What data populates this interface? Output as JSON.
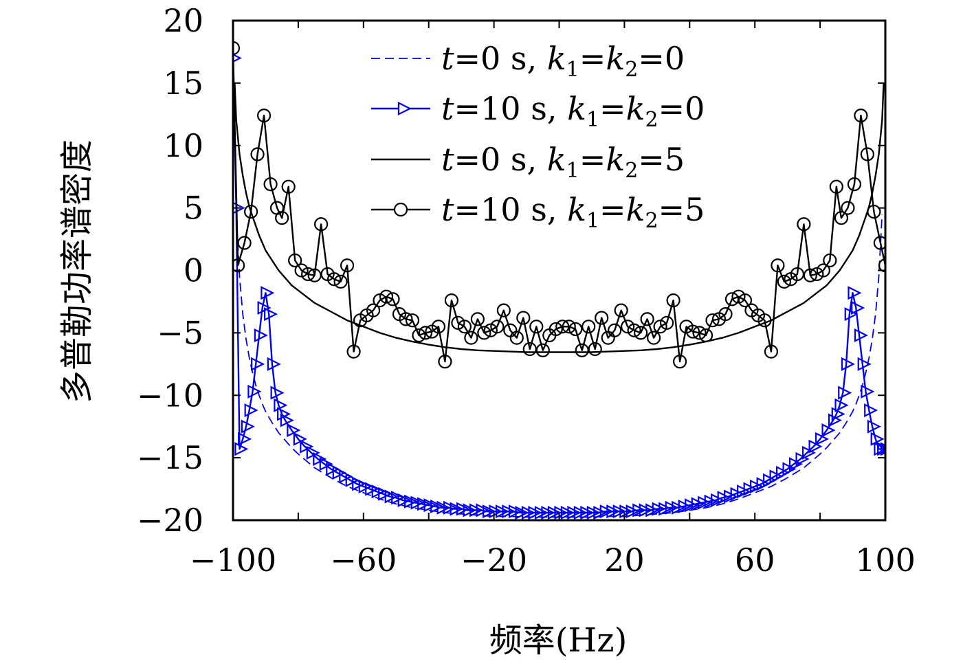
{
  "chart_data": {
    "type": "line",
    "xlabel": "频率(Hz)",
    "ylabel": "多普勒功率谱密度",
    "xlim": [
      -100,
      100
    ],
    "ylim": [
      -20,
      20
    ],
    "x_ticks": [
      "−100",
      "−60",
      "−20",
      "20",
      "60",
      "100"
    ],
    "x_tick_values": [
      -100,
      -60,
      -20,
      20,
      60,
      100
    ],
    "y_ticks": [
      "20",
      "15",
      "10",
      "5",
      "0",
      "−5",
      "−10",
      "−15",
      "−20"
    ],
    "y_tick_values": [
      20,
      15,
      10,
      5,
      0,
      -5,
      -10,
      -15,
      -20
    ],
    "grid": false,
    "legend_position": "top-right",
    "series": [
      {
        "name": "t=0 s, k1=k2=0",
        "legend_label": {
          "t": "t",
          "eq1": "=0 s, ",
          "k1": "k",
          "s1": "1",
          "eq2": "=",
          "k2": "k",
          "s2": "2",
          "eq3": "=0"
        },
        "style": "dashed",
        "marker": "none",
        "color": "#0000ee",
        "x": [
          -99,
          -98,
          -97,
          -96,
          -95,
          -94,
          -93,
          -92,
          -91,
          -90,
          -88,
          -86,
          -84,
          -82,
          -80,
          -75,
          -70,
          -65,
          -60,
          -55,
          -50,
          -45,
          -40,
          -35,
          -30,
          -25,
          -20,
          -15,
          -10,
          -5,
          0,
          5,
          10,
          15,
          20,
          25,
          30,
          35,
          40,
          45,
          50,
          55,
          60,
          65,
          70,
          75,
          80,
          82,
          84,
          86,
          88,
          90,
          91,
          92,
          93,
          94,
          95,
          96,
          97,
          98,
          99
        ],
        "y": [
          4.5,
          -0.5,
          -3.5,
          -5.5,
          -7,
          -8.2,
          -9.2,
          -10,
          -10.7,
          -11.3,
          -12.2,
          -13,
          -13.6,
          -14.2,
          -14.7,
          -15.8,
          -16.6,
          -17.3,
          -17.8,
          -18.3,
          -18.7,
          -19,
          -19.2,
          -19.4,
          -19.5,
          -19.6,
          -19.7,
          -19.7,
          -19.75,
          -19.75,
          -19.75,
          -19.75,
          -19.75,
          -19.7,
          -19.7,
          -19.6,
          -19.5,
          -19.4,
          -19.2,
          -19,
          -18.7,
          -18.3,
          -17.8,
          -17.3,
          -16.6,
          -15.8,
          -14.7,
          -14.2,
          -13.6,
          -13,
          -12.2,
          -11.3,
          -10.7,
          -10,
          -9.2,
          -8.2,
          -7,
          -5.5,
          -3.5,
          -0.5,
          4.5
        ]
      },
      {
        "name": "t=10 s, k1=k2=0",
        "legend_label": {
          "t": "t",
          "eq1": "=10 s, ",
          "k1": "k",
          "s1": "1",
          "eq2": "=",
          "k2": "k",
          "s2": "2",
          "eq3": "=0"
        },
        "style": "solid",
        "marker": "triangle-right",
        "color": "#0000ee",
        "x": [
          -100,
          -99,
          -98,
          -97,
          -96,
          -95,
          -94,
          -93,
          -92,
          -91,
          -90,
          -89,
          -88,
          -87,
          -86,
          -85,
          -84,
          -82,
          -80,
          -78,
          -76,
          -74,
          -72,
          -70,
          -68,
          -66,
          -64,
          -62,
          -60,
          -58,
          -56,
          -54,
          -52,
          -50,
          -48,
          -46,
          -44,
          -42,
          -40,
          -38,
          -36,
          -34,
          -32,
          -30,
          -28,
          -26,
          -24,
          -22,
          -20,
          -18,
          -16,
          -14,
          -12,
          -10,
          -8,
          -6,
          -4,
          -2,
          0,
          2,
          4,
          6,
          8,
          10,
          12,
          14,
          16,
          18,
          20,
          22,
          24,
          26,
          28,
          30,
          32,
          34,
          36,
          38,
          40,
          42,
          44,
          46,
          48,
          50,
          52,
          54,
          56,
          58,
          60,
          62,
          64,
          66,
          68,
          70,
          72,
          74,
          76,
          78,
          80,
          82,
          84,
          85,
          86,
          87,
          88,
          89,
          90,
          91,
          92,
          93,
          94,
          95,
          96,
          97,
          98,
          99,
          100
        ],
        "y": [
          17,
          5,
          -14.3,
          -13.5,
          -12.5,
          -11.2,
          -9.7,
          -7.5,
          -5.2,
          -3,
          -1.8,
          -3.5,
          -7.5,
          -9.8,
          -10.8,
          -11.5,
          -12,
          -12.8,
          -13.5,
          -14.1,
          -14.6,
          -15.1,
          -15.5,
          -15.9,
          -16.2,
          -16.5,
          -16.8,
          -17.1,
          -17.3,
          -17.5,
          -17.7,
          -17.9,
          -18.1,
          -18.2,
          -18.4,
          -18.5,
          -18.6,
          -18.7,
          -18.8,
          -18.9,
          -19,
          -19,
          -19.1,
          -19.1,
          -19.2,
          -19.2,
          -19.2,
          -19.3,
          -19.3,
          -19.3,
          -19.3,
          -19.3,
          -19.4,
          -19.4,
          -19.4,
          -19.4,
          -19.4,
          -19.4,
          -19.4,
          -19.4,
          -19.4,
          -19.4,
          -19.4,
          -19.4,
          -19.4,
          -19.3,
          -19.3,
          -19.3,
          -19.3,
          -19.3,
          -19.2,
          -19.2,
          -19.2,
          -19.1,
          -19.1,
          -19,
          -19,
          -18.9,
          -18.8,
          -18.7,
          -18.6,
          -18.5,
          -18.4,
          -18.2,
          -18.1,
          -17.9,
          -17.7,
          -17.5,
          -17.3,
          -17.1,
          -16.8,
          -16.5,
          -16.2,
          -15.9,
          -15.5,
          -15.1,
          -14.6,
          -14.1,
          -13.5,
          -12.8,
          -12,
          -11.5,
          -10.8,
          -9.8,
          -7.5,
          -3.5,
          -1.8,
          -3,
          -5.2,
          -7.5,
          -9.7,
          -11.2,
          -12.5,
          -13.5,
          -14.3,
          -14.3,
          -14.3
        ]
      },
      {
        "name": "t=0 s, k1=k2=5",
        "legend_label": {
          "t": "t",
          "eq1": "=0 s, ",
          "k1": "k",
          "s1": "1",
          "eq2": "=",
          "k2": "k",
          "s2": "2",
          "eq3": "=5"
        },
        "style": "solid",
        "marker": "none",
        "color": "#000000",
        "x": [
          -99.5,
          -99,
          -98,
          -97,
          -96,
          -95,
          -94,
          -92,
          -90,
          -88,
          -86,
          -84,
          -82,
          -80,
          -75,
          -70,
          -65,
          -60,
          -55,
          -50,
          -45,
          -40,
          -35,
          -30,
          -25,
          -20,
          -15,
          -10,
          -5,
          0,
          5,
          10,
          15,
          20,
          25,
          30,
          35,
          40,
          45,
          50,
          55,
          60,
          65,
          70,
          75,
          80,
          82,
          84,
          86,
          88,
          90,
          92,
          94,
          95,
          96,
          97,
          98,
          99,
          99.5
        ],
        "y": [
          15,
          12,
          9.3,
          7.6,
          6.2,
          5.1,
          4.3,
          2.8,
          1.6,
          0.8,
          0,
          -0.6,
          -1.2,
          -1.6,
          -2.6,
          -3.3,
          -4,
          -4.5,
          -5,
          -5.4,
          -5.7,
          -5.95,
          -6.15,
          -6.3,
          -6.4,
          -6.45,
          -6.5,
          -6.55,
          -6.55,
          -6.55,
          -6.55,
          -6.55,
          -6.5,
          -6.45,
          -6.4,
          -6.3,
          -6.15,
          -5.95,
          -5.7,
          -5.4,
          -5,
          -4.5,
          -4,
          -3.3,
          -2.6,
          -1.6,
          -1.2,
          -0.6,
          0,
          0.8,
          1.6,
          2.8,
          4.3,
          5.1,
          6.2,
          7.6,
          9.3,
          12,
          15
        ]
      },
      {
        "name": "t=10 s, k1=k2=5",
        "legend_label": {
          "t": "t",
          "eq1": "=10 s, ",
          "k1": "k",
          "s1": "1",
          "eq2": "=",
          "k2": "k",
          "s2": "2",
          "eq3": "=5"
        },
        "style": "solid",
        "marker": "circle",
        "color": "#000000",
        "x": [
          -100,
          -98.5,
          -96.5,
          -94.5,
          -92.5,
          -90.5,
          -88.5,
          -86.5,
          -85,
          -83,
          -81,
          -79,
          -77,
          -75,
          -73,
          -71,
          -69,
          -67,
          -65,
          -63,
          -61,
          -59,
          -57,
          -55,
          -53,
          -51,
          -49,
          -47,
          -45,
          -43,
          -41,
          -39,
          -37,
          -35,
          -33,
          -31,
          -29,
          -27,
          -25,
          -23,
          -21,
          -19,
          -17,
          -15,
          -13,
          -11,
          -9,
          -7,
          -5,
          -3,
          -1,
          1,
          3,
          5,
          7,
          9,
          11,
          13,
          15,
          17,
          19,
          21,
          23,
          25,
          27,
          29,
          31,
          33,
          35,
          37,
          39,
          41,
          43,
          45,
          47,
          49,
          51,
          53,
          55,
          57,
          59,
          61,
          63,
          65,
          67,
          69,
          71,
          73,
          75,
          77,
          79,
          81,
          83,
          85,
          86.5,
          88.5,
          90.5,
          92.5,
          94.5,
          96.5,
          98.5,
          100
        ],
        "y": [
          17.8,
          0.4,
          2.2,
          4.7,
          9.3,
          12.4,
          6.9,
          5,
          4.2,
          6.7,
          0.8,
          0,
          -0.3,
          -0.4,
          3.7,
          -0.3,
          -0.7,
          -0.9,
          0.4,
          -6.5,
          -4,
          -3.6,
          -3.2,
          -2.4,
          -2.1,
          -2.3,
          -3.5,
          -3.9,
          -4,
          -5.2,
          -5,
          -4.9,
          -4.5,
          -7.3,
          -2.4,
          -4.2,
          -4.5,
          -5.4,
          -3.9,
          -5,
          -4.8,
          -4.5,
          -3.2,
          -4.8,
          -5.4,
          -3.8,
          -6.3,
          -4.5,
          -6.4,
          -5.2,
          -4.7,
          -4.5,
          -4.5,
          -4.7,
          -6.4,
          -4.5,
          -6.3,
          -3.8,
          -5.4,
          -4.8,
          -3.2,
          -4.5,
          -4.8,
          -5,
          -3.9,
          -5.4,
          -4.5,
          -4.2,
          -2.4,
          -7.3,
          -4.5,
          -4.9,
          -5,
          -5.2,
          -4,
          -3.9,
          -3.5,
          -2.3,
          -2.1,
          -2.4,
          -3.2,
          -3.6,
          -4,
          -6.5,
          0.4,
          -0.9,
          -0.7,
          -0.3,
          3.7,
          -0.4,
          -0.3,
          0,
          0.8,
          6.7,
          4.2,
          5,
          6.9,
          12.4,
          9.3,
          4.7,
          2.2,
          0.4
        ]
      }
    ]
  }
}
